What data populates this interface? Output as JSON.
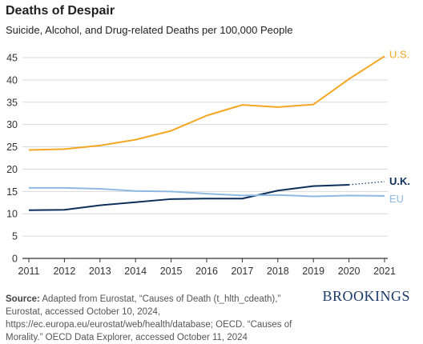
{
  "title": "Deaths of Despair",
  "subtitle": "Suicide, Alcohol, and Drug-related Deaths per 100,000 People",
  "source_label": "Source:",
  "source_text": "Adapted from Eurostat, “Causes of Death (t_hlth_cdeath),” Eurostat, accessed October 10, 2024, https://ec.europa.eu/eurostat/web/health/database; OECD. “Causes of Morality.” OECD Data Explorer, accessed October 11, 2024",
  "logo": "BROOKINGS",
  "chart_data": {
    "type": "line",
    "title": "Deaths of Despair",
    "subtitle": "Suicide, Alcohol, and Drug-related Deaths per 100,000 People",
    "xlabel": "",
    "ylabel": "",
    "x": [
      2011,
      2012,
      2013,
      2014,
      2015,
      2016,
      2017,
      2018,
      2019,
      2020,
      2021
    ],
    "ylim": [
      0,
      45
    ],
    "yticks": [
      0,
      5,
      10,
      15,
      20,
      25,
      30,
      35,
      40,
      45
    ],
    "grid": "horizontal",
    "series": [
      {
        "name": "U.S.",
        "color": "#f5a623",
        "values": [
          24.3,
          24.5,
          25.3,
          26.6,
          28.6,
          32.0,
          34.4,
          33.9,
          34.5,
          40.2,
          45.3
        ]
      },
      {
        "name": "U.K.",
        "color": "#0b2f5a",
        "values": [
          10.8,
          10.9,
          11.9,
          12.6,
          13.3,
          13.4,
          13.4,
          15.2,
          16.2,
          16.5,
          17.2
        ],
        "dotted_from": 2020
      },
      {
        "name": "EU",
        "color": "#8fb9e3",
        "values": [
          15.8,
          15.8,
          15.6,
          15.1,
          15.0,
          14.5,
          14.1,
          14.2,
          13.9,
          14.1,
          14.0
        ]
      }
    ]
  }
}
